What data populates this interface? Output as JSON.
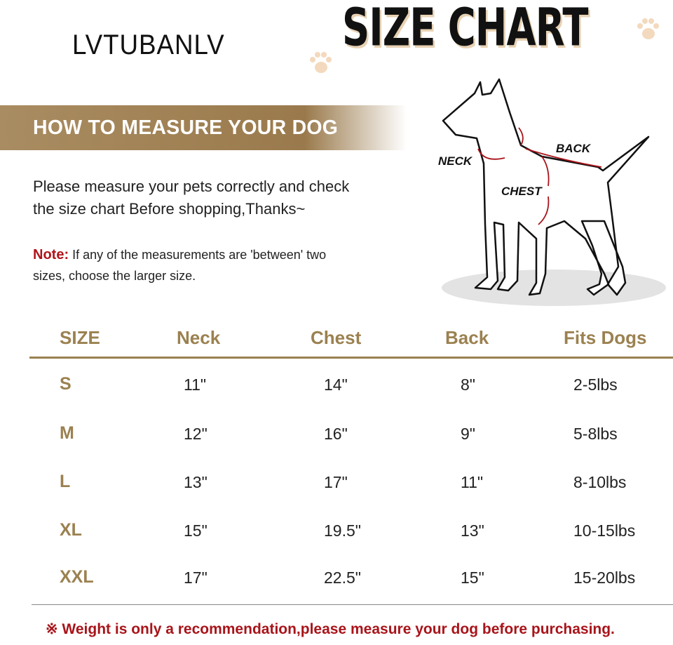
{
  "brand": "LVTUBANLV",
  "title": "SIZE CHART",
  "banner": "HOW TO MEASURE YOUR DOG",
  "intro": [
    "Please measure your pets correctly and check",
    "the size chart Before shopping,Thanks~"
  ],
  "note": {
    "label": "Note:",
    "line1": " If any of the measurements are 'between' two",
    "line2": "sizes, choose the larger size."
  },
  "diagram": {
    "neck": "NECK",
    "back": "BACK",
    "chest": "CHEST",
    "arrow_color": "#a8141a"
  },
  "table": {
    "headers": [
      "SIZE",
      "Neck",
      "Chest",
      "Back",
      "Fits Dogs"
    ],
    "rows": [
      [
        "S",
        "11\"",
        "14\"",
        "8\"",
        "2-5lbs"
      ],
      [
        "M",
        "12\"",
        "16\"",
        "9\"",
        "5-8lbs"
      ],
      [
        "L",
        "13\"",
        "17\"",
        "11\"",
        "8-10lbs"
      ],
      [
        "XL",
        "15\"",
        "19.5\"",
        "13\"",
        "10-15lbs"
      ],
      [
        "XXL",
        "17\"",
        "22.5\"",
        "15\"",
        "15-20lbs"
      ]
    ]
  },
  "footer": "※ Weight is only a recommendation,please measure your dog before purchasing.",
  "colors": {
    "accent": "#9b8150",
    "warning": "#a8141a"
  }
}
